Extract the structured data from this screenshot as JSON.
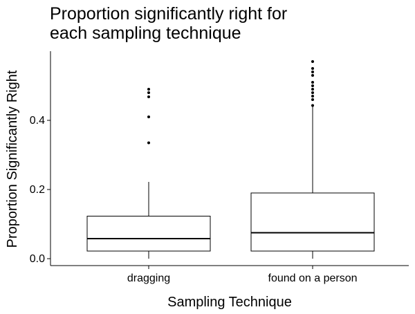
{
  "chart_data": {
    "type": "boxplot",
    "title_lines": [
      "Proportion significantly right for",
      "each sampling technique"
    ],
    "xlabel": "Sampling Technique",
    "ylabel": "Proportion Significantly Right",
    "ylim": [
      -0.02,
      0.6
    ],
    "yticks": [
      0.0,
      0.2,
      0.4
    ],
    "ytick_labels": [
      "0.0",
      "0.2",
      "0.4"
    ],
    "grid": false,
    "categories": [
      "dragging",
      "found on a person"
    ],
    "boxes": [
      {
        "category": "dragging",
        "whisker_low": 0.0,
        "q1": 0.022,
        "median": 0.058,
        "q3": 0.123,
        "whisker_high": 0.222,
        "outliers": [
          0.335,
          0.41,
          0.468,
          0.48,
          0.49
        ]
      },
      {
        "category": "found on a person",
        "whisker_low": 0.0,
        "q1": 0.022,
        "median": 0.075,
        "q3": 0.19,
        "whisker_high": 0.44,
        "outliers": [
          0.443,
          0.46,
          0.47,
          0.48,
          0.49,
          0.5,
          0.51,
          0.53,
          0.54,
          0.55,
          0.57
        ]
      }
    ]
  }
}
